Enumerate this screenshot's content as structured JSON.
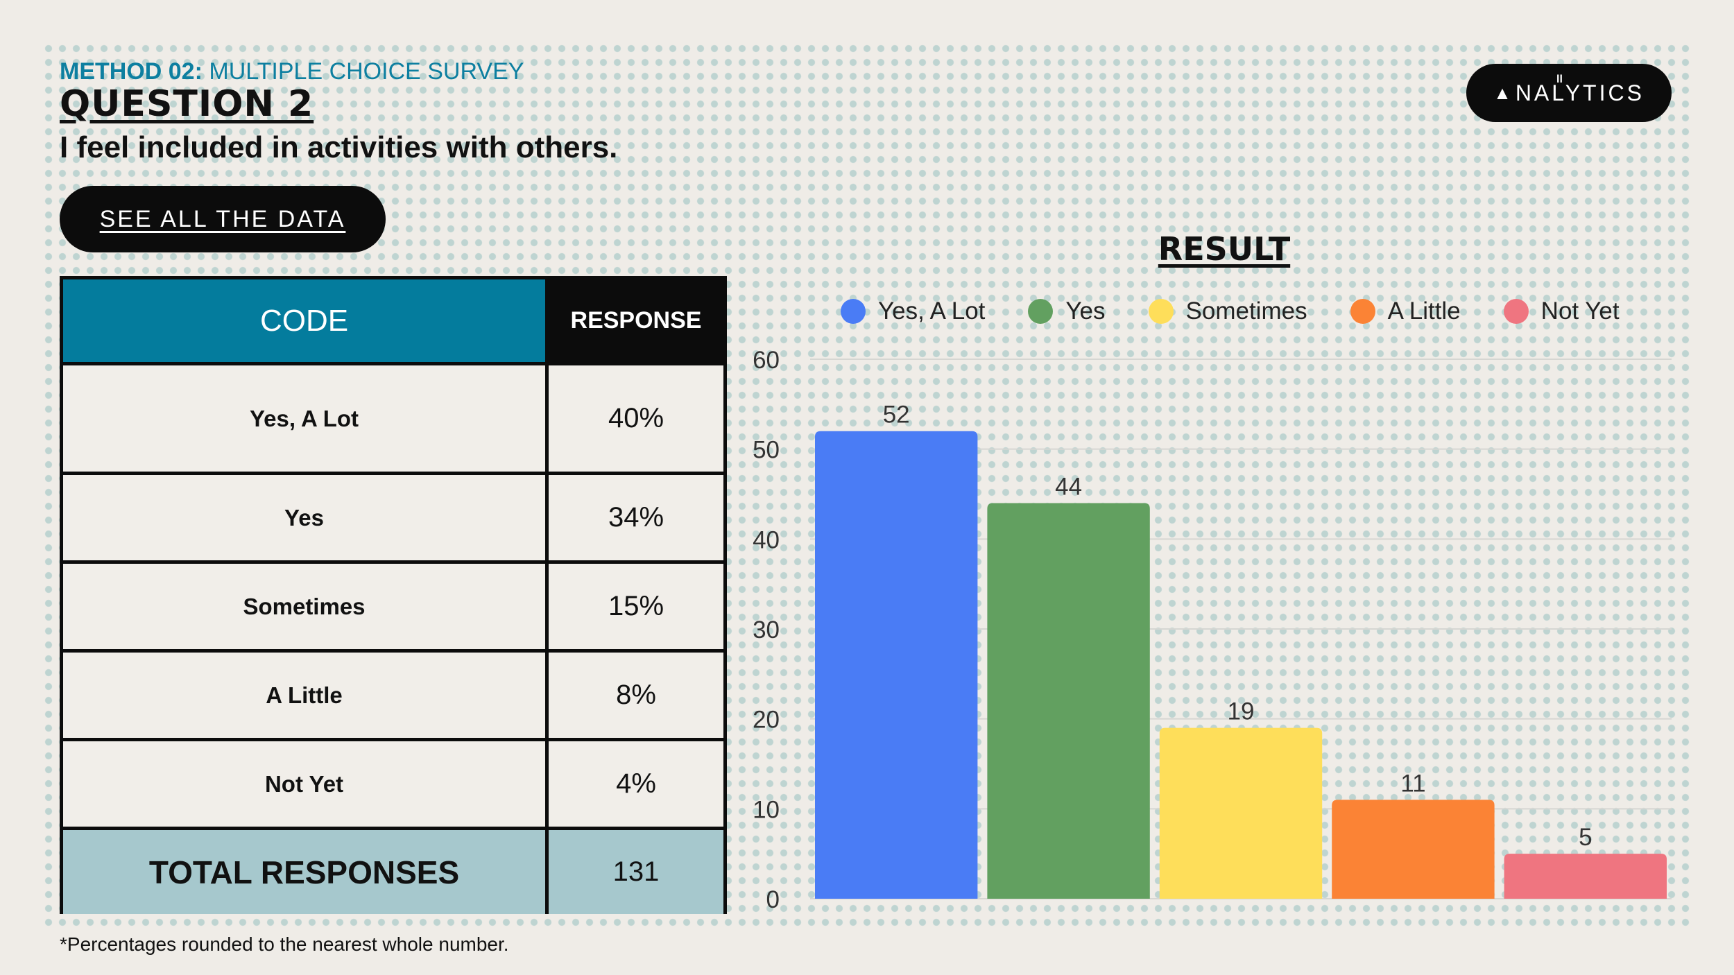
{
  "header": {
    "method_label": "METHOD 02:",
    "method_text": "MULTIPLE CHOICE SURVEY",
    "question_label": "QUESTION 2",
    "prompt": "I feel included in activities with others."
  },
  "see_all_button": "SEE ALL THE DATA",
  "logo": {
    "mark": "ll",
    "text": "NALYTICS",
    "icon": "triangle-a-icon"
  },
  "table": {
    "headers": {
      "code": "CODE",
      "response": "RESPONSE"
    },
    "rows": [
      {
        "code": "Yes, A Lot",
        "response": "40%"
      },
      {
        "code": "Yes",
        "response": "34%"
      },
      {
        "code": "Sometimes",
        "response": "15%"
      },
      {
        "code": "A Little",
        "response": "8%"
      },
      {
        "code": "Not Yet",
        "response": "4%"
      }
    ],
    "total": {
      "label": "TOTAL RESPONSES",
      "value": "131"
    }
  },
  "footnote": "*Percentages rounded to the nearest whole number.",
  "chart_data": {
    "type": "bar",
    "title": "RESULT",
    "categories": [
      "Yes, A Lot",
      "Yes",
      "Sometimes",
      "A Little",
      "Not Yet"
    ],
    "values": [
      52,
      44,
      19,
      11,
      5
    ],
    "colors": [
      "#4a7cf5",
      "#62a060",
      "#fede5a",
      "#fb8335",
      "#ef7580"
    ],
    "ylim": [
      0,
      60
    ],
    "yticks": [
      0,
      10,
      20,
      30,
      40,
      50,
      60
    ],
    "xlabel": "",
    "ylabel": "",
    "grid": true,
    "legend_position": "top",
    "data_labels": true
  }
}
